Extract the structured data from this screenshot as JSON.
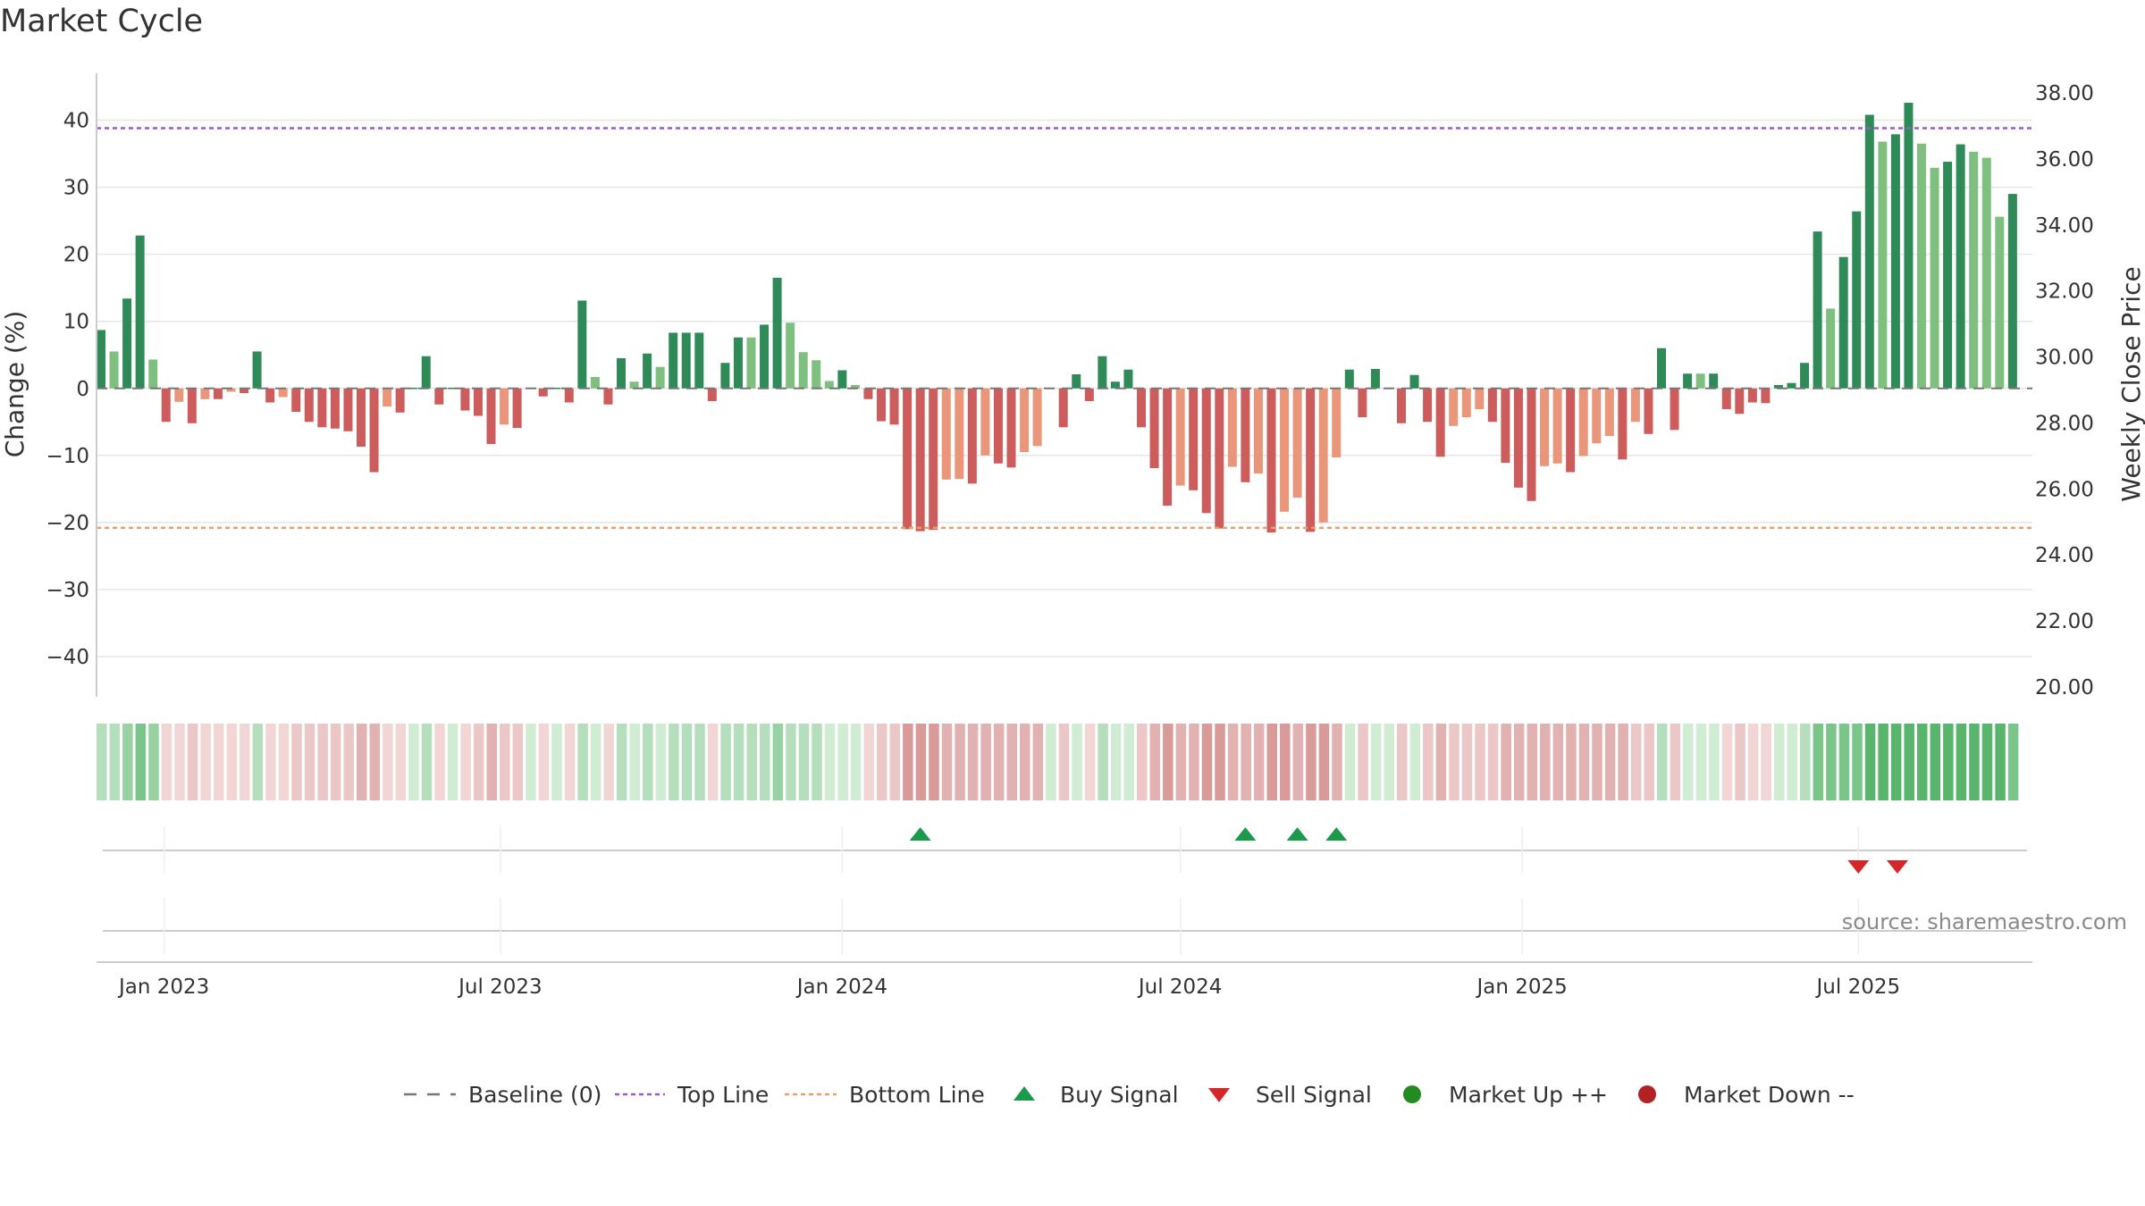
{
  "colors": {
    "strong_up": "#2e8b57",
    "mild_up": "#7fbf7f",
    "strong_down": "#cd5c5c",
    "mild_down": "#e9967a",
    "top_line": "#9b59d0",
    "bottom_line": "#e8a06a",
    "buy": "#1a9a4a",
    "sell": "#d62728",
    "market_up": "#228b22",
    "market_down": "#b22222"
  },
  "chart_data": {
    "type": "bar",
    "title": "Market Cycle",
    "ylabel": "Change (%)",
    "y2label": "Weekly Close Price",
    "ylim": [
      -46,
      47
    ],
    "y2lim": [
      19.7,
      38.6
    ],
    "yticks": [
      40,
      30,
      20,
      10,
      0,
      -10,
      -20,
      -30,
      -40
    ],
    "ytick_labels": [
      "40",
      "30",
      "20",
      "10",
      "0",
      "−10",
      "−20",
      "−30",
      "−40"
    ],
    "y2ticks": [
      38,
      36,
      34,
      32,
      30,
      28,
      26,
      24,
      22,
      20
    ],
    "y2tick_labels": [
      "38.00",
      "36.00",
      "34.00",
      "32.00",
      "30.00",
      "28.00",
      "26.00",
      "24.00",
      "22.00",
      "20.00"
    ],
    "x_start": "2022-11-28",
    "xticks": [
      {
        "date": "2023-01-01",
        "label": "Jan 2023"
      },
      {
        "date": "2023-07-01",
        "label": "Jul 2023"
      },
      {
        "date": "2024-01-01",
        "label": "Jan 2024"
      },
      {
        "date": "2024-07-01",
        "label": "Jul 2024"
      },
      {
        "date": "2025-01-01",
        "label": "Jan 2025"
      },
      {
        "date": "2025-07-01",
        "label": "Jul 2025"
      }
    ],
    "reference_lines": {
      "baseline": 0,
      "top_line": 38.8,
      "bottom_line": -20.8
    },
    "series": [
      {
        "name": "Change (%)",
        "values": [
          8.7,
          5.5,
          13.4,
          22.8,
          4.3,
          -5.0,
          -2.0,
          -5.2,
          -1.6,
          -1.6,
          -0.5,
          -0.7,
          5.5,
          -2.1,
          -1.3,
          -3.5,
          -5.0,
          -5.8,
          -6.0,
          -6.4,
          -8.7,
          -12.5,
          -2.7,
          -3.6,
          0.1,
          4.8,
          -2.4,
          0.1,
          -3.3,
          -4.1,
          -8.3,
          -5.4,
          -5.9,
          0.1,
          -1.2,
          0.1,
          -2.1,
          13.1,
          1.7,
          -2.4,
          4.5,
          1.0,
          5.2,
          3.2,
          8.3,
          8.3,
          8.3,
          -1.9,
          3.8,
          7.6,
          7.6,
          9.5,
          16.5,
          9.8,
          5.4,
          4.2,
          1.1,
          2.7,
          0.5,
          -1.6,
          -4.9,
          -5.4,
          -21.0,
          -21.3,
          -21.1,
          -13.6,
          -13.5,
          -14.2,
          -10.0,
          -11.2,
          -11.8,
          -9.5,
          -8.6,
          0.1,
          -5.8,
          2.1,
          -1.9,
          4.8,
          1.0,
          2.8,
          -5.8,
          -11.9,
          -17.5,
          -14.5,
          -15.2,
          -18.6,
          -20.9,
          -11.7,
          -14.0,
          -12.7,
          -21.5,
          -18.4,
          -16.3,
          -21.4,
          -20.0,
          -10.3,
          2.8,
          -4.3,
          2.9,
          0.1,
          -5.2,
          2.0,
          -5.0,
          -10.2,
          -5.6,
          -4.3,
          -3.1,
          -5.0,
          -11.1,
          -14.8,
          -16.8,
          -11.6,
          -11.2,
          -12.5,
          -10.1,
          -8.2,
          -7.1,
          -10.6,
          -5.0,
          -6.8,
          6.0,
          -6.2,
          2.2,
          2.2,
          2.2,
          -3.1,
          -3.8,
          -2.1,
          -2.2,
          0.5,
          0.8,
          3.8,
          23.4,
          11.9,
          19.6,
          26.4,
          40.8,
          36.8,
          37.9,
          42.6,
          36.5,
          32.9,
          33.8,
          36.4,
          35.3,
          34.4,
          25.6,
          29.0
        ],
        "strength": [
          2,
          1,
          2,
          2,
          1,
          2,
          1,
          2,
          1,
          2,
          1,
          2,
          2,
          2,
          1,
          2,
          2,
          2,
          2,
          2,
          2,
          2,
          1,
          2,
          2,
          2,
          2,
          2,
          2,
          2,
          2,
          1,
          2,
          2,
          2,
          2,
          2,
          2,
          1,
          2,
          2,
          1,
          2,
          1,
          2,
          2,
          2,
          2,
          2,
          2,
          1,
          2,
          2,
          1,
          1,
          1,
          1,
          2,
          1,
          2,
          2,
          2,
          2,
          2,
          2,
          1,
          1,
          2,
          1,
          2,
          2,
          1,
          1,
          2,
          2,
          2,
          2,
          2,
          2,
          2,
          2,
          2,
          2,
          1,
          2,
          2,
          2,
          1,
          2,
          1,
          2,
          1,
          1,
          2,
          1,
          1,
          2,
          2,
          2,
          2,
          2,
          2,
          2,
          2,
          1,
          1,
          1,
          2,
          2,
          2,
          2,
          1,
          1,
          2,
          1,
          1,
          1,
          2,
          1,
          2,
          2,
          2,
          2,
          1,
          2,
          2,
          2,
          2,
          2,
          2,
          2,
          2,
          2,
          1,
          2,
          2,
          2,
          1,
          2,
          2,
          1,
          1,
          2,
          2,
          1,
          1,
          1,
          2
        ]
      }
    ],
    "heat_levels": [
      2,
      2,
      3,
      4,
      3,
      -1,
      -1,
      -2,
      -1,
      -1,
      -1,
      -1,
      2,
      -1,
      -1,
      -2,
      -2,
      -2,
      -2,
      -2,
      -3,
      -3,
      -1,
      -1,
      1,
      2,
      -1,
      1,
      -1,
      -2,
      -3,
      -2,
      -2,
      1,
      -1,
      1,
      -1,
      2,
      1,
      -1,
      2,
      1,
      2,
      1,
      2,
      2,
      2,
      -1,
      2,
      2,
      2,
      2,
      3,
      2,
      2,
      2,
      1,
      1,
      1,
      -1,
      -2,
      -2,
      -4,
      -4,
      -4,
      -3,
      -3,
      -3,
      -3,
      -3,
      -3,
      -3,
      -3,
      1,
      -2,
      1,
      -1,
      2,
      1,
      1,
      -2,
      -3,
      -4,
      -3,
      -3,
      -4,
      -4,
      -3,
      -3,
      -3,
      -4,
      -4,
      -3,
      -4,
      -4,
      -3,
      1,
      -2,
      1,
      1,
      -2,
      1,
      -2,
      -3,
      -2,
      -2,
      -2,
      -2,
      -3,
      -3,
      -3,
      -3,
      -3,
      -3,
      -3,
      -3,
      -3,
      -3,
      -2,
      -2,
      2,
      -2,
      1,
      1,
      1,
      -1,
      -2,
      -1,
      -1,
      1,
      1,
      2,
      4,
      4,
      4,
      4,
      5,
      5,
      5,
      5,
      5,
      5,
      5,
      5,
      5,
      5,
      5,
      4
    ],
    "buy_signals": [
      "2024-02-12",
      "2024-08-05",
      "2024-09-02",
      "2024-09-23"
    ],
    "sell_signals": [
      "2025-07-01",
      "2025-07-22"
    ],
    "legend": [
      "Baseline (0)",
      "Top Line",
      "Bottom Line",
      "Buy Signal",
      "Sell Signal",
      "Market Up ++",
      "Market Down --"
    ],
    "legend_placement": "bottom-center",
    "grid": true
  },
  "source": "source: sharemaestro.com"
}
